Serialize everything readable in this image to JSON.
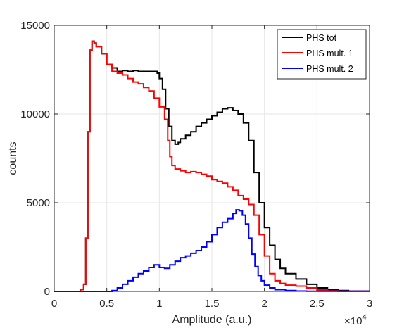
{
  "chart_data": {
    "type": "line",
    "step": true,
    "xlabel": "Amplitude (a.u.)",
    "ylabel": "counts",
    "x_exponent_label": "×10",
    "x_exponent_power": "4",
    "xlim": [
      0,
      30000
    ],
    "ylim": [
      0,
      15000
    ],
    "x_ticks": [
      0,
      5000,
      10000,
      15000,
      20000,
      25000,
      30000
    ],
    "x_tick_labels": [
      "0",
      "0.5",
      "1",
      "1.5",
      "2",
      "2.5",
      "3"
    ],
    "y_ticks": [
      0,
      5000,
      10000,
      15000
    ],
    "y_tick_labels": [
      "0",
      "5000",
      "10000",
      "15000"
    ],
    "grid": true,
    "legend_position": "top-right",
    "series": [
      {
        "name": "PHS tot",
        "color": "#000000",
        "x": [
          0,
          2500,
          2800,
          3000,
          3200,
          3400,
          3600,
          3800,
          4000,
          4500,
          5000,
          5500,
          6000,
          6500,
          7000,
          7500,
          8000,
          8500,
          9000,
          9500,
          9800,
          10000,
          10300,
          10600,
          10900,
          11200,
          11500,
          11800,
          12000,
          12500,
          13000,
          13500,
          14000,
          14500,
          15000,
          15500,
          16000,
          16500,
          17000,
          17500,
          18000,
          18500,
          19000,
          19500,
          20000,
          20500,
          21000,
          21500,
          22000,
          23000,
          24000,
          25000,
          26000,
          27000,
          28000,
          30000
        ],
        "y": [
          0,
          100,
          400,
          3000,
          9000,
          13600,
          14100,
          14000,
          13800,
          13400,
          12800,
          12600,
          12400,
          12450,
          12400,
          12450,
          12400,
          12400,
          12400,
          12400,
          12300,
          12000,
          11400,
          10300,
          9300,
          8500,
          8300,
          8400,
          8600,
          8800,
          9000,
          9300,
          9500,
          9700,
          9900,
          10100,
          10300,
          10350,
          10200,
          10000,
          9500,
          8500,
          6700,
          5000,
          3600,
          2600,
          1800,
          1300,
          1000,
          700,
          400,
          200,
          100,
          50,
          20,
          0
        ]
      },
      {
        "name": "PHS mult. 1",
        "color": "#ff0000",
        "x": [
          0,
          2500,
          2800,
          3000,
          3200,
          3400,
          3600,
          3800,
          4000,
          4500,
          5000,
          5500,
          6000,
          6500,
          7000,
          7500,
          8000,
          8500,
          9000,
          9500,
          10000,
          10500,
          10800,
          11000,
          11200,
          11500,
          12000,
          12500,
          13000,
          13500,
          14000,
          14500,
          15000,
          15500,
          16000,
          16500,
          17000,
          17500,
          18000,
          18500,
          19000,
          19500,
          20000,
          20500,
          21000,
          21500,
          22000,
          23000,
          24000,
          25000,
          26000,
          27000,
          30000
        ],
        "y": [
          0,
          100,
          400,
          3000,
          9000,
          13600,
          14100,
          14000,
          13800,
          13400,
          12800,
          12400,
          12300,
          12200,
          12000,
          11800,
          11700,
          11500,
          11300,
          10900,
          10400,
          9700,
          8500,
          7600,
          7100,
          6900,
          6800,
          6700,
          6750,
          6700,
          6600,
          6500,
          6300,
          6200,
          6100,
          5900,
          5700,
          5400,
          5200,
          4900,
          4300,
          3200,
          2000,
          1000,
          600,
          450,
          350,
          300,
          200,
          80,
          30,
          10,
          0
        ]
      },
      {
        "name": "PHS mult. 2",
        "color": "#0000ff",
        "x": [
          0,
          5500,
          6000,
          6500,
          7000,
          7500,
          8000,
          8500,
          9000,
          9500,
          10000,
          10500,
          11000,
          11500,
          12000,
          12500,
          13000,
          13500,
          14000,
          14500,
          15000,
          15500,
          16000,
          16500,
          17000,
          17300,
          17600,
          17900,
          18200,
          18500,
          18800,
          19100,
          19400,
          19700,
          20000,
          20500,
          21000,
          22000,
          23000,
          24000,
          30000
        ],
        "y": [
          0,
          50,
          200,
          400,
          600,
          800,
          1000,
          1150,
          1350,
          1500,
          1350,
          1300,
          1500,
          1700,
          1900,
          2000,
          2150,
          2300,
          2500,
          2800,
          3200,
          3600,
          3900,
          4100,
          4400,
          4600,
          4550,
          4300,
          3800,
          3000,
          2100,
          1400,
          900,
          600,
          350,
          200,
          100,
          50,
          20,
          10,
          0
        ]
      }
    ]
  }
}
